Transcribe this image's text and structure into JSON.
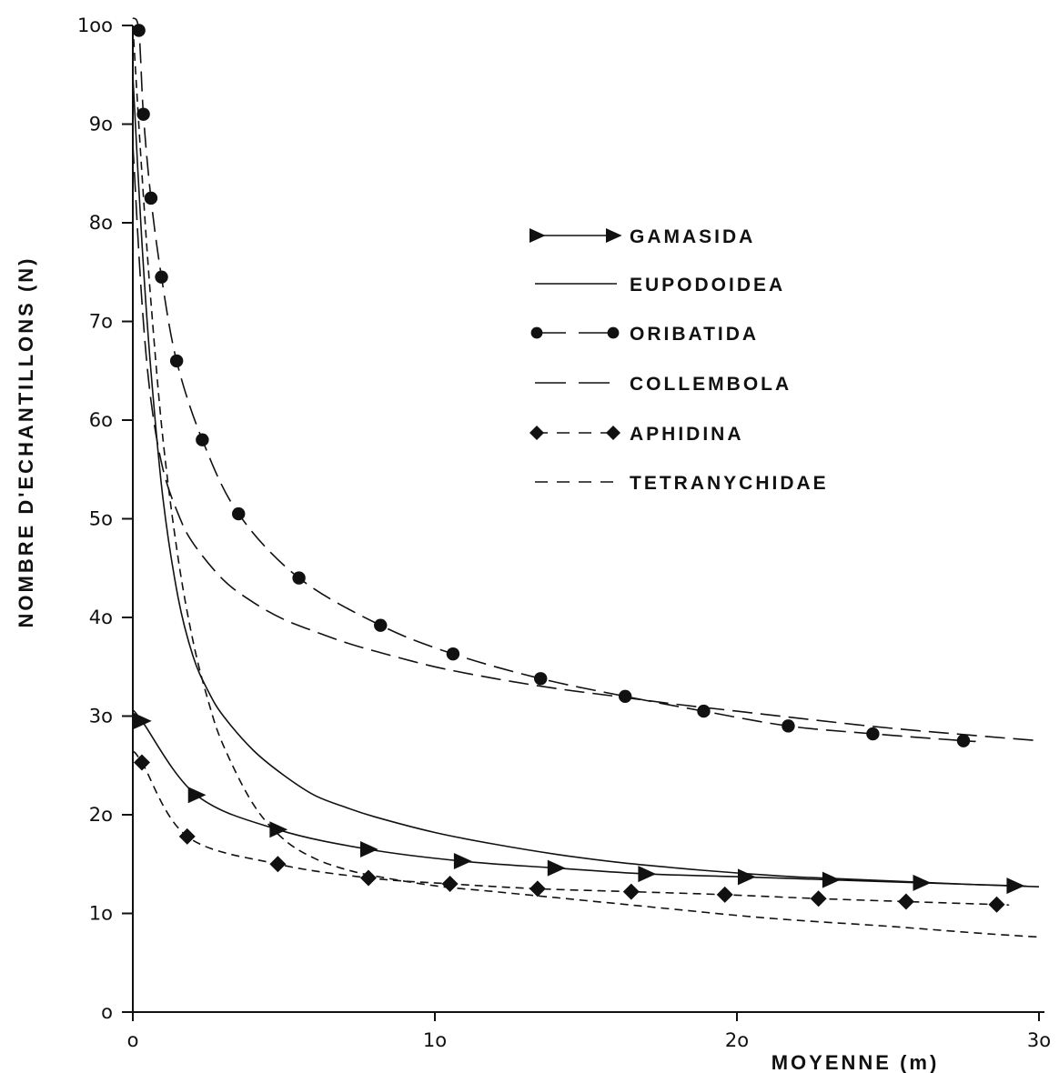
{
  "chart_data": {
    "type": "line",
    "title": "",
    "xlabel": "MOYENNE (m)",
    "ylabel": "NOMBRE D'ECHANTILLONS (N)",
    "xlim": [
      0,
      30
    ],
    "ylim": [
      0,
      100
    ],
    "x_ticks": [
      0,
      10,
      20,
      30
    ],
    "x_tick_labels": [
      "o",
      "1o",
      "2o",
      "3o"
    ],
    "y_ticks": [
      0,
      10,
      20,
      30,
      40,
      50,
      60,
      70,
      80,
      90,
      100
    ],
    "y_tick_labels": [
      "o",
      "1o",
      "2o",
      "3o",
      "4o",
      "5o",
      "6o",
      "7o",
      "8o",
      "9o",
      "1oo"
    ],
    "grid": false,
    "legend_position": "top-right",
    "series": [
      {
        "name": "GAMASIDA",
        "line": "solid",
        "marker": "triangle-right",
        "x": [
          0.3,
          2.1,
          4.8,
          7.8,
          10.9,
          14.0,
          17.0,
          20.3,
          23.1,
          26.1,
          29.2
        ],
        "y": [
          29.5,
          22.0,
          18.5,
          16.5,
          15.3,
          14.6,
          14.0,
          13.7,
          13.4,
          13.1,
          12.8
        ]
      },
      {
        "name": "EUPODOIDEA",
        "line": "solid",
        "marker": "none",
        "x": [
          0.0,
          0.3,
          0.6,
          1.0,
          1.5,
          2.0,
          2.5,
          3.0,
          4.0,
          5.0,
          6.0,
          7.0,
          8.0,
          10.0,
          12.0,
          14.0,
          16.0,
          18.0,
          20.0,
          22.0,
          25.0,
          28.0,
          30.0
        ],
        "y": [
          95.0,
          78.0,
          65.0,
          52.0,
          42.0,
          36.0,
          32.5,
          30.0,
          26.5,
          24.0,
          22.0,
          20.8,
          19.8,
          18.2,
          17.0,
          16.0,
          15.2,
          14.6,
          14.1,
          13.7,
          13.3,
          12.9,
          12.7
        ]
      },
      {
        "name": "ORIBATIDA",
        "line": "long-dash",
        "marker": "circle",
        "x": [
          0.2,
          0.35,
          0.6,
          0.95,
          1.45,
          2.3,
          3.5,
          5.5,
          8.2,
          10.6,
          13.5,
          16.3,
          18.9,
          21.7,
          24.5,
          27.5
        ],
        "y": [
          99.5,
          91.0,
          82.5,
          74.5,
          66.0,
          58.0,
          50.5,
          44.0,
          39.2,
          36.3,
          33.8,
          32.0,
          30.5,
          29.0,
          28.2,
          27.5
        ]
      },
      {
        "name": "COLLEMBOLA",
        "line": "long-dash",
        "marker": "none",
        "x": [
          0.0,
          0.3,
          0.6,
          1.0,
          1.5,
          2.0,
          3.0,
          4.0,
          5.0,
          6.0,
          7.0,
          8.0,
          10.0,
          12.0,
          14.0,
          16.0,
          18.0,
          20.0,
          22.0,
          25.0,
          28.0,
          30.0
        ],
        "y": [
          88.0,
          72.0,
          62.0,
          55.0,
          50.5,
          47.5,
          43.8,
          41.5,
          39.8,
          38.6,
          37.5,
          36.6,
          35.0,
          33.8,
          32.8,
          32.0,
          31.2,
          30.5,
          29.8,
          28.8,
          28.0,
          27.5
        ]
      },
      {
        "name": "APHIDINA",
        "line": "dash",
        "marker": "diamond",
        "x": [
          0.3,
          1.8,
          4.8,
          7.8,
          10.5,
          13.4,
          16.5,
          19.6,
          22.7,
          25.6,
          28.6
        ],
        "y": [
          25.3,
          17.8,
          15.0,
          13.6,
          13.0,
          12.5,
          12.2,
          11.9,
          11.5,
          11.2,
          10.9
        ]
      },
      {
        "name": "TETRANYCHIDAE",
        "line": "dash",
        "marker": "none",
        "x": [
          0.0,
          0.3,
          0.6,
          1.0,
          1.5,
          2.0,
          2.5,
          3.0,
          4.0,
          5.0,
          6.0,
          7.0,
          8.0,
          10.0,
          12.0,
          14.0,
          16.0,
          18.0,
          20.0,
          22.0,
          25.0,
          28.0,
          30.0
        ],
        "y": [
          100.0,
          85.0,
          72.0,
          58.0,
          46.0,
          37.5,
          31.5,
          27.0,
          21.0,
          17.5,
          15.6,
          14.5,
          13.8,
          12.8,
          12.2,
          11.6,
          11.0,
          10.4,
          9.8,
          9.3,
          8.7,
          8.0,
          7.6
        ]
      }
    ]
  }
}
